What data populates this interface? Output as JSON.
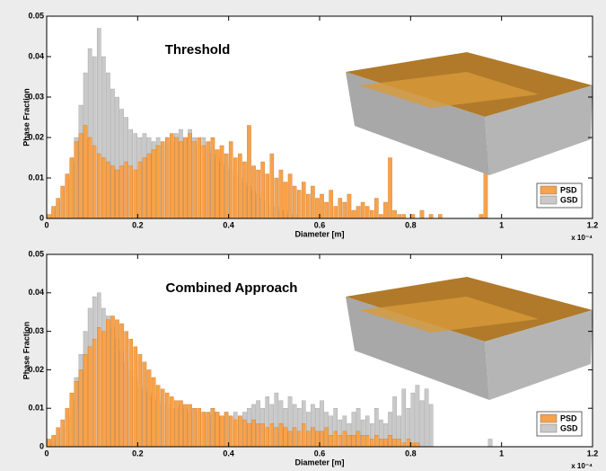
{
  "chart_data": [
    {
      "type": "histogram",
      "title": "Threshold",
      "xlabel": "Diameter [m]",
      "ylabel": "Phase Fraction",
      "x_multiplier": "x 10⁻⁴",
      "xlim": [
        0,
        1.2
      ],
      "xticks": [
        0,
        0.2,
        0.4,
        0.6,
        0.8,
        1,
        1.2
      ],
      "ylim": [
        0,
        0.05
      ],
      "yticks": [
        0,
        0.01,
        0.02,
        0.03,
        0.04,
        0.05
      ],
      "legend": "lower right",
      "bins": [
        0,
        0.01,
        0.02,
        0.03,
        0.04,
        0.05,
        0.06,
        0.07,
        0.08,
        0.09,
        0.1,
        0.11,
        0.12,
        0.13,
        0.14,
        0.15,
        0.16,
        0.17,
        0.18,
        0.19,
        0.2,
        0.21,
        0.22,
        0.23,
        0.24,
        0.25,
        0.26,
        0.27,
        0.28,
        0.29,
        0.3,
        0.31,
        0.32,
        0.33,
        0.34,
        0.35,
        0.36,
        0.37,
        0.38,
        0.39,
        0.4,
        0.41,
        0.42,
        0.43,
        0.44,
        0.45,
        0.46,
        0.47,
        0.48,
        0.49,
        0.5,
        0.51,
        0.52,
        0.53,
        0.54,
        0.55,
        0.56,
        0.57,
        0.58,
        0.59,
        0.6,
        0.61,
        0.62,
        0.63,
        0.64,
        0.65,
        0.66,
        0.67,
        0.68,
        0.69,
        0.7,
        0.71,
        0.72,
        0.73,
        0.74,
        0.75,
        0.76,
        0.77,
        0.78,
        0.79,
        0.8,
        0.81,
        0.82,
        0.83,
        0.84,
        0.85,
        0.86,
        0.87,
        0.88,
        0.89,
        0.9,
        0.91,
        0.92,
        0.93,
        0.94,
        0.95,
        0.96,
        0.97,
        0.98,
        0.99,
        1
      ],
      "series": [
        {
          "name": "PSD",
          "color": "#f7a24c",
          "values": [
            0.001,
            0.003,
            0.005,
            0.008,
            0.011,
            0.015,
            0.019,
            0.021,
            0.023,
            0.02,
            0.018,
            0.016,
            0.015,
            0.014,
            0.013,
            0.012,
            0.013,
            0.014,
            0.013,
            0.012,
            0.014,
            0.015,
            0.016,
            0.017,
            0.018,
            0.019,
            0.02,
            0.021,
            0.02,
            0.019,
            0.02,
            0.021,
            0.019,
            0.02,
            0.018,
            0.019,
            0.02,
            0.017,
            0.018,
            0.016,
            0.019,
            0.015,
            0.016,
            0.014,
            0.023,
            0.013,
            0.012,
            0.014,
            0.011,
            0.016,
            0.01,
            0.012,
            0.009,
            0.011,
            0.008,
            0.007,
            0.009,
            0.006,
            0.008,
            0.005,
            0.006,
            0.004,
            0.007,
            0.003,
            0.005,
            0.004,
            0.006,
            0.002,
            0.003,
            0.004,
            0.003,
            0.002,
            0.005,
            0.001,
            0.004,
            0.015,
            0.002,
            0.001,
            0.001,
            0,
            0.001,
            0,
            0.002,
            0,
            0.001,
            0,
            0.001,
            0,
            0,
            0,
            0,
            0,
            0,
            0,
            0,
            0.001,
            0.016,
            0,
            0,
            0
          ]
        },
        {
          "name": "GSD",
          "color": "#c9c9c9",
          "values": [
            0,
            0.002,
            0.004,
            0.007,
            0.01,
            0.014,
            0.02,
            0.028,
            0.036,
            0.042,
            0.04,
            0.047,
            0.04,
            0.036,
            0.032,
            0.03,
            0.027,
            0.025,
            0.022,
            0.021,
            0.02,
            0.021,
            0.02,
            0.019,
            0.02,
            0.018,
            0.02,
            0.019,
            0.021,
            0.022,
            0.02,
            0.022,
            0.02,
            0.018,
            0.02,
            0.017,
            0.016,
            0.015,
            0.014,
            0.013,
            0.012,
            0.011,
            0.01,
            0.009,
            0.008,
            0.007,
            0.006,
            0.005,
            0.004,
            0.003,
            0.003,
            0.002,
            0.002,
            0.001,
            0.001,
            0.001,
            0,
            0,
            0,
            0,
            0,
            0,
            0,
            0,
            0,
            0,
            0,
            0,
            0,
            0,
            0,
            0,
            0,
            0,
            0,
            0,
            0,
            0,
            0,
            0,
            0,
            0,
            0,
            0,
            0,
            0,
            0,
            0,
            0,
            0,
            0,
            0,
            0,
            0,
            0,
            0,
            0,
            0,
            0,
            0
          ]
        }
      ]
    },
    {
      "type": "histogram",
      "title": "Combined Approach",
      "xlabel": "Diameter [m]",
      "ylabel": "Phase Fraction",
      "x_multiplier": "x 10⁻⁴",
      "xlim": [
        0,
        1.2
      ],
      "xticks": [
        0,
        0.2,
        0.4,
        0.6,
        0.8,
        1,
        1.2
      ],
      "ylim": [
        0,
        0.05
      ],
      "yticks": [
        0,
        0.01,
        0.02,
        0.03,
        0.04,
        0.05
      ],
      "legend": "lower right",
      "bins": [
        0,
        0.01,
        0.02,
        0.03,
        0.04,
        0.05,
        0.06,
        0.07,
        0.08,
        0.09,
        0.1,
        0.11,
        0.12,
        0.13,
        0.14,
        0.15,
        0.16,
        0.17,
        0.18,
        0.19,
        0.2,
        0.21,
        0.22,
        0.23,
        0.24,
        0.25,
        0.26,
        0.27,
        0.28,
        0.29,
        0.3,
        0.31,
        0.32,
        0.33,
        0.34,
        0.35,
        0.36,
        0.37,
        0.38,
        0.39,
        0.4,
        0.41,
        0.42,
        0.43,
        0.44,
        0.45,
        0.46,
        0.47,
        0.48,
        0.49,
        0.5,
        0.51,
        0.52,
        0.53,
        0.54,
        0.55,
        0.56,
        0.57,
        0.58,
        0.59,
        0.6,
        0.61,
        0.62,
        0.63,
        0.64,
        0.65,
        0.66,
        0.67,
        0.68,
        0.69,
        0.7,
        0.71,
        0.72,
        0.73,
        0.74,
        0.75,
        0.76,
        0.77,
        0.78,
        0.79,
        0.8,
        0.81,
        0.82,
        0.83,
        0.84,
        0.85,
        0.86,
        0.87,
        0.88,
        0.89,
        0.9,
        0.91,
        0.92,
        0.93,
        0.94,
        0.95,
        0.96,
        0.97,
        0.98,
        0.99,
        1
      ],
      "series": [
        {
          "name": "PSD",
          "color": "#f7a24c",
          "values": [
            0.002,
            0.003,
            0.005,
            0.007,
            0.01,
            0.014,
            0.017,
            0.02,
            0.024,
            0.026,
            0.028,
            0.031,
            0.03,
            0.033,
            0.034,
            0.033,
            0.032,
            0.03,
            0.028,
            0.026,
            0.024,
            0.022,
            0.02,
            0.018,
            0.016,
            0.015,
            0.014,
            0.013,
            0.012,
            0.012,
            0.011,
            0.011,
            0.01,
            0.01,
            0.009,
            0.009,
            0.01,
            0.009,
            0.008,
            0.009,
            0.008,
            0.007,
            0.008,
            0.007,
            0.006,
            0.007,
            0.006,
            0.006,
            0.005,
            0.006,
            0.005,
            0.006,
            0.005,
            0.004,
            0.005,
            0.004,
            0.006,
            0.004,
            0.005,
            0.004,
            0.004,
            0.005,
            0.003,
            0.004,
            0.003,
            0.004,
            0.003,
            0.003,
            0.004,
            0.003,
            0.003,
            0.002,
            0.003,
            0.002,
            0.002,
            0.003,
            0.002,
            0.002,
            0.001,
            0.002,
            0.001,
            0.001,
            0,
            0,
            0,
            0,
            0,
            0,
            0,
            0,
            0,
            0,
            0,
            0,
            0,
            0,
            0,
            0,
            0,
            0
          ]
        },
        {
          "name": "GSD",
          "color": "#c9c9c9",
          "values": [
            0.001,
            0.002,
            0.003,
            0.005,
            0.008,
            0.012,
            0.018,
            0.024,
            0.03,
            0.036,
            0.039,
            0.04,
            0.036,
            0.034,
            0.031,
            0.028,
            0.025,
            0.022,
            0.02,
            0.018,
            0.016,
            0.015,
            0.014,
            0.013,
            0.012,
            0.011,
            0.011,
            0.01,
            0.01,
            0.011,
            0.01,
            0.009,
            0.01,
            0.009,
            0.009,
            0.008,
            0.01,
            0.009,
            0.008,
            0.009,
            0.008,
            0.009,
            0.008,
            0.009,
            0.01,
            0.011,
            0.012,
            0.01,
            0.013,
            0.011,
            0.014,
            0.012,
            0.01,
            0.013,
            0.011,
            0.01,
            0.012,
            0.009,
            0.011,
            0.01,
            0.012,
            0.009,
            0.008,
            0.01,
            0.007,
            0.008,
            0.006,
            0.009,
            0.01,
            0.007,
            0.008,
            0.006,
            0.01,
            0.007,
            0.006,
            0.009,
            0.013,
            0.008,
            0.015,
            0.01,
            0.014,
            0.016,
            0.012,
            0.015,
            0.011,
            0,
            0,
            0,
            0,
            0,
            0,
            0,
            0,
            0,
            0,
            0,
            0,
            0.002,
            0,
            0
          ]
        }
      ]
    }
  ]
}
